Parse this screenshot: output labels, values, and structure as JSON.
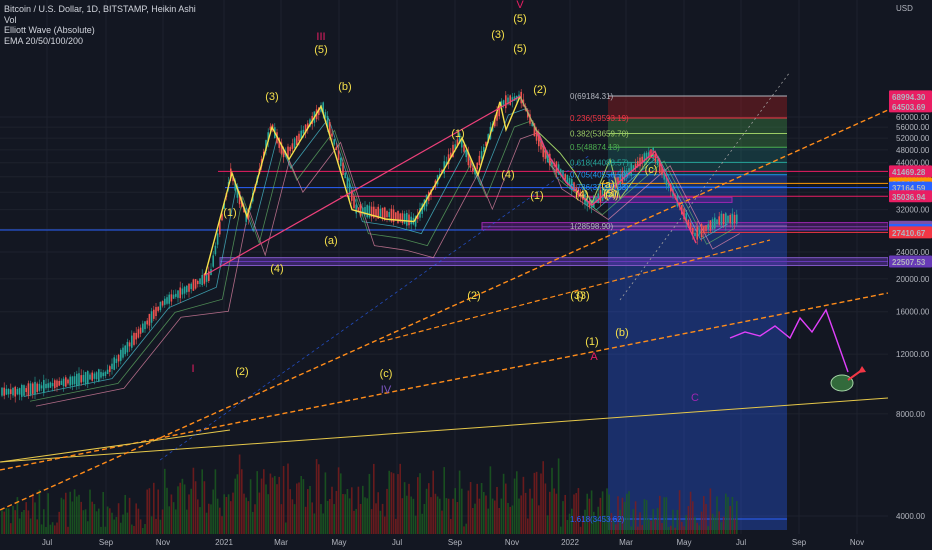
{
  "legend": {
    "title": "Bitcoin / U.S. Dollar, 1D, BITSTAMP, Heikin Ashi",
    "vol": "Vol",
    "elliott": "Elliott Wave (Absolute)",
    "ema": "EMA 20/50/100/200"
  },
  "colors": {
    "background": "#131722",
    "grid": "#1e222d",
    "wave_yellow": "#f5e04b",
    "wave_red": "#f23645",
    "dashed_orange": "#ff8c1a",
    "projection_magenta": "#e040fb",
    "zone_blue": "#2962ff",
    "zone_green": "#4caf50",
    "zone_red": "#b71c1c",
    "long_trend": "#e6c84a"
  },
  "chart_data": {
    "type": "candlestick",
    "currency": "USD",
    "y_scale": "log",
    "ylim": [
      3200,
      90000
    ],
    "x_ticks": [
      "Jul",
      "Sep",
      "Nov",
      "2021",
      "Mar",
      "May",
      "Jul",
      "Sep",
      "Nov",
      "2022",
      "Mar",
      "May",
      "Jul",
      "Sep",
      "Nov"
    ],
    "y_ticks": [
      "4000.00",
      "8000.00",
      "12000.00",
      "16000.00",
      "20000.00",
      "24000.00",
      "28000.00",
      "32000.00",
      "36000.00",
      "40000.00",
      "44000.00",
      "48000.00",
      "52000.00",
      "56000.00",
      "60000.00"
    ],
    "price_labels": [
      {
        "text": "68994.30",
        "value": 68994.3,
        "color": "#e91e63"
      },
      {
        "text": "64503.69",
        "value": 64503.69,
        "color": "#e91e63"
      },
      {
        "text": "41469.28",
        "value": 41469.28,
        "color": "#e91e63"
      },
      {
        "text": "38244.89",
        "value": 38244.89,
        "color": "#ff9800"
      },
      {
        "text": "37164.59",
        "value": 37164.59,
        "color": "#2962ff"
      },
      {
        "text": "35036.94",
        "value": 35036.94,
        "color": "#e91e63"
      },
      {
        "text": "28497.53",
        "value": 28497.53,
        "color": "#7b4fa8"
      },
      {
        "text": "27870.28",
        "value": 27870.28,
        "color": "#2962ff"
      },
      {
        "text": "27410.67",
        "value": 27410.67,
        "color": "#f23645"
      },
      {
        "text": "22507.53",
        "value": 22507.53,
        "color": "#673ab7"
      }
    ],
    "fib_levels": [
      {
        "text": "0(69184.31)",
        "value": 69184.31
      },
      {
        "text": "0.236(59593.19)",
        "value": 59593.19
      },
      {
        "text": "0.382(53659.70)",
        "value": 53659.7
      },
      {
        "text": "0.5(48874.13)",
        "value": 48874.13
      },
      {
        "text": "0.618(44088.57)",
        "value": 44088.57
      },
      {
        "text": "0.705(40556.50)",
        "value": 40556.5
      },
      {
        "text": "0.786(37268.23)",
        "value": 37268.23
      },
      {
        "text": "1(28598.90)",
        "value": 28598.9
      },
      {
        "text": "1.618(3453.62)",
        "value": 3453.62
      }
    ],
    "wave_labels_yellow": [
      "(1)",
      "(2)",
      "(3)",
      "(4)",
      "(5)",
      "(a)",
      "(b)",
      "(c)",
      "(1)",
      "(2)",
      "(3)",
      "(4)",
      "(5)",
      "(1)",
      "(2)",
      "(3)",
      "(4)",
      "(5)",
      "(a)",
      "(b)",
      "(c)",
      "(1)",
      "(3)",
      "(4)",
      "(5)"
    ],
    "wave_labels_red": [
      "I",
      "III",
      "IV",
      "V",
      "A",
      "B",
      "C"
    ],
    "price_series_approx": [
      {
        "date": "2020-06",
        "value": 9300
      },
      {
        "date": "2020-09",
        "value": 10500
      },
      {
        "date": "2020-11",
        "value": 17000
      },
      {
        "date": "2020-12-20",
        "value": 20500
      },
      {
        "date": "2021-01-08",
        "value": 41000
      },
      {
        "date": "2021-01-25",
        "value": 30000
      },
      {
        "date": "2021-02-20",
        "value": 57000
      },
      {
        "date": "2021-03-05",
        "value": 46000
      },
      {
        "date": "2021-04-14",
        "value": 64500
      },
      {
        "date": "2021-05-19",
        "value": 32000
      },
      {
        "date": "2021-06-22",
        "value": 31000
      },
      {
        "date": "2021-07-20",
        "value": 29500
      },
      {
        "date": "2021-09-06",
        "value": 52000
      },
      {
        "date": "2021-09-21",
        "value": 41000
      },
      {
        "date": "2021-10-20",
        "value": 66000
      },
      {
        "date": "2021-11-10",
        "value": 69000
      },
      {
        "date": "2021-12-04",
        "value": 47000
      },
      {
        "date": "2022-01-22",
        "value": 33000
      },
      {
        "date": "2022-03-28",
        "value": 47500
      },
      {
        "date": "2022-05-12",
        "value": 27000
      },
      {
        "date": "2022-06-10",
        "value": 30000
      }
    ]
  }
}
